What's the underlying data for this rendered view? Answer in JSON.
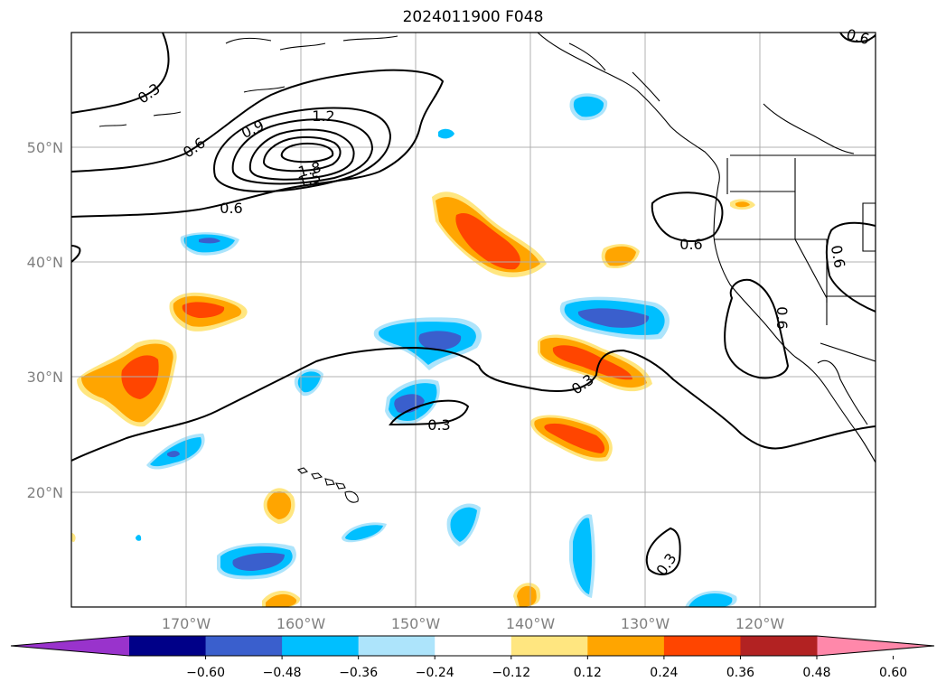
{
  "title": "2024011900 F048",
  "lat_labels": [
    "50°N",
    "40°N",
    "30°N",
    "20°N"
  ],
  "lon_labels": [
    "170°W",
    "160°W",
    "150°W",
    "140°W",
    "130°W",
    "120°W"
  ],
  "contour_labels": [
    "0.3",
    "0.6",
    "0.9",
    "1.2",
    "1.8",
    "1.5",
    "0.6",
    "0.6",
    "0.6",
    "0.6",
    "0.3",
    "0.3",
    "0.3",
    "0.6"
  ],
  "colorbar": {
    "ticks": [
      "−0.60",
      "−0.48",
      "−0.36",
      "−0.24",
      "−0.12",
      "0.12",
      "0.24",
      "0.36",
      "0.48",
      "0.60"
    ],
    "colors": [
      "#9933cc",
      "#000088",
      "#3a5fcd",
      "#00bfff",
      "#ade4fb",
      "#ffffff",
      "#ffe680",
      "#ffa500",
      "#ff4500",
      "#b22222",
      "#ff88aa"
    ]
  },
  "colors": {
    "neg_light": "#ade4fb",
    "neg_mid": "#00bfff",
    "neg_dark": "#3a5fcd",
    "pos_light": "#ffe680",
    "pos_mid": "#ffa500",
    "pos_dark": "#ff4500",
    "gridline": "#b0b0b0",
    "coast": "#000000"
  }
}
